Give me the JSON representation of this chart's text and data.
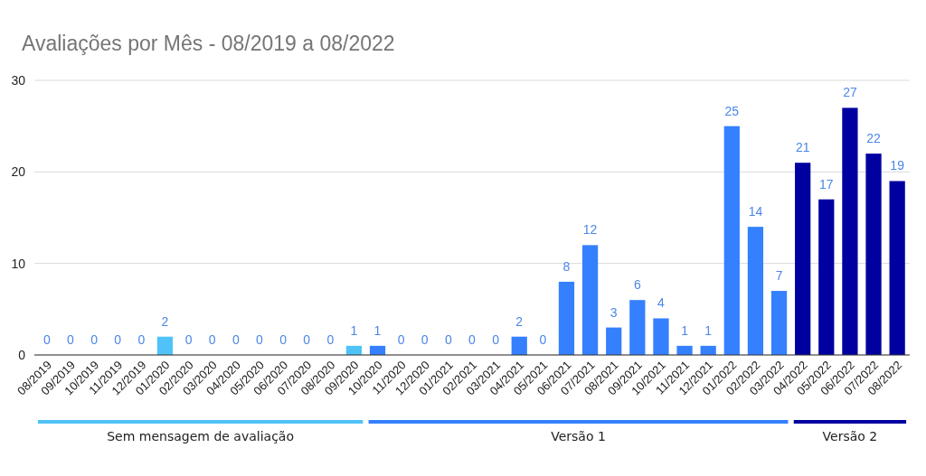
{
  "chart_data": {
    "type": "bar",
    "title": "Avaliações por Mês - 08/2019 a 08/2022",
    "categories": [
      "08/2019",
      "09/2019",
      "10/2019",
      "11/2019",
      "12/2019",
      "01/2020",
      "02/2020",
      "03/2020",
      "04/2020",
      "05/2020",
      "06/2020",
      "07/2020",
      "08/2020",
      "09/2020",
      "10/2020",
      "11/2020",
      "12/2020",
      "01/2021",
      "02/2021",
      "03/2021",
      "04/2021",
      "05/2021",
      "06/2021",
      "07/2021",
      "08/2021",
      "09/2021",
      "10/2021",
      "11/2021",
      "12/2021",
      "01/2022",
      "02/2022",
      "03/2022",
      "04/2022",
      "05/2022",
      "06/2022",
      "07/2022",
      "08/2022"
    ],
    "values": [
      0,
      0,
      0,
      0,
      0,
      2,
      0,
      0,
      0,
      0,
      0,
      0,
      0,
      1,
      1,
      0,
      0,
      0,
      0,
      0,
      2,
      0,
      8,
      12,
      3,
      6,
      4,
      1,
      1,
      25,
      14,
      7,
      21,
      17,
      27,
      22,
      19
    ],
    "colors": [
      "#4fc3f7",
      "#4fc3f7",
      "#4fc3f7",
      "#4fc3f7",
      "#4fc3f7",
      "#4fc3f7",
      "#4fc3f7",
      "#4fc3f7",
      "#4fc3f7",
      "#4fc3f7",
      "#4fc3f7",
      "#4fc3f7",
      "#4fc3f7",
      "#4fc3f7",
      "#3480ff",
      "#3480ff",
      "#3480ff",
      "#3480ff",
      "#3480ff",
      "#3480ff",
      "#3480ff",
      "#3480ff",
      "#3480ff",
      "#3480ff",
      "#3480ff",
      "#3480ff",
      "#3480ff",
      "#3480ff",
      "#3480ff",
      "#3480ff",
      "#3480ff",
      "#3480ff",
      "#0000a0",
      "#0000a0",
      "#0000a0",
      "#0000a0",
      "#0000a0"
    ],
    "ylim": [
      0,
      30
    ],
    "yticks": [
      0,
      10,
      20,
      30
    ],
    "grid": "y",
    "data_labels": true,
    "annotations": [
      "Sem mensagem de avaliação",
      "Versão 1",
      "Versão 2"
    ]
  }
}
